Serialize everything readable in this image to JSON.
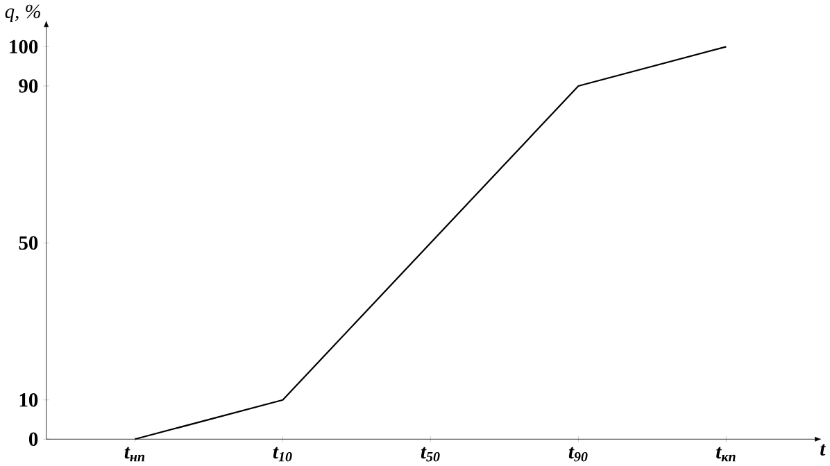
{
  "chart_data": {
    "type": "line",
    "xlabel": "t",
    "ylabel": "q, %",
    "categories": [
      "t$_{нп}$",
      "t$_{10}$",
      "t$_{50}$",
      "t$_{90}$",
      "t$_{кп}$"
    ],
    "series": [
      {
        "color": "#000000",
        "values": [
          0,
          10,
          50,
          90,
          100
        ]
      }
    ],
    "ylim": [
      0,
      105
    ],
    "yticks": [
      0,
      10,
      50,
      90,
      100
    ],
    "marker": "none",
    "line_style": "solid"
  }
}
